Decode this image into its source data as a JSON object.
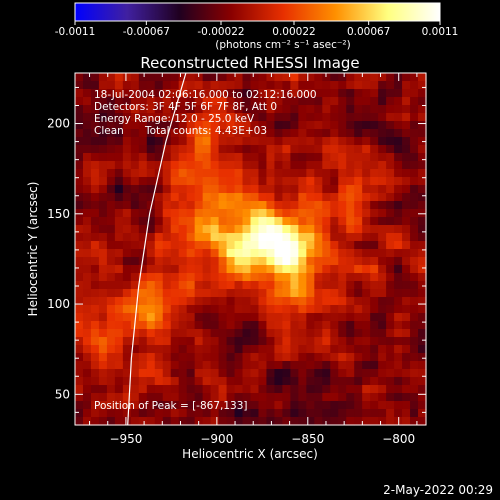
{
  "colorbar": {
    "tick_labels": [
      "-0.0011",
      "-0.00067",
      "-0.00022",
      "0.00022",
      "0.00067",
      "0.0011"
    ],
    "units_label": "(photons cm⁻² s⁻¹ asec⁻²)",
    "colors": [
      "#0000ff",
      "#4020a0",
      "#200020",
      "#8a0000",
      "#e83000",
      "#ff9000",
      "#ffff80",
      "#ffffff"
    ]
  },
  "chart_data": {
    "type": "heatmap",
    "title": "Reconstructed RHESSI Image",
    "xlabel": "Heliocentric X (arcsec)",
    "ylabel": "Heliocentric Y (arcsec)",
    "xlim": [
      -978,
      -785
    ],
    "ylim": [
      33,
      228
    ],
    "x_ticks": [
      -950,
      -900,
      -850,
      -800
    ],
    "y_ticks": [
      50,
      100,
      150,
      200
    ],
    "x_tick_labels": [
      "−950",
      "−900",
      "−850",
      "−800"
    ],
    "y_tick_labels": [
      "50",
      "100",
      "150",
      "200"
    ],
    "clim": [
      -0.0011,
      0.0011
    ],
    "peak": [
      -867,
      133
    ],
    "sources": [
      {
        "x": -867,
        "y": 133,
        "sx": 16,
        "sy": 11,
        "amp": 0.0011
      },
      {
        "x": -895,
        "y": 140,
        "sx": 22,
        "sy": 18,
        "amp": 0.00062
      },
      {
        "x": -860,
        "y": 108,
        "sx": 16,
        "sy": 12,
        "amp": 0.00042
      },
      {
        "x": -905,
        "y": 195,
        "sx": 12,
        "sy": 18,
        "amp": 0.00035
      },
      {
        "x": -958,
        "y": 85,
        "sx": 22,
        "sy": 20,
        "amp": 0.00038
      },
      {
        "x": -830,
        "y": 150,
        "sx": 16,
        "sy": 30,
        "amp": 0.00026
      },
      {
        "x": -935,
        "y": 105,
        "sx": 14,
        "sy": 14,
        "amp": 0.00022
      }
    ],
    "background": -0.00018,
    "limb": [
      [
        -917,
        228
      ],
      [
        -928,
        190
      ],
      [
        -937,
        150
      ],
      [
        -943,
        110
      ],
      [
        -947,
        70
      ],
      [
        -949,
        33
      ]
    ],
    "annotations": {
      "time_range": "18-Jul-2004 02:06:16.000 to 02:12:16.000",
      "detectors": "Detectors: 3F 4F 5F 6F 7F 8F, Att 0",
      "energy_range": "Energy Range: 12.0 - 25.0 keV",
      "method": "Clean",
      "total_counts": "Total counts: 4.43E+03",
      "peak_position": "Position of Peak = [-867,133]"
    }
  },
  "footer": {
    "timestamp": "2-May-2022 00:29"
  }
}
